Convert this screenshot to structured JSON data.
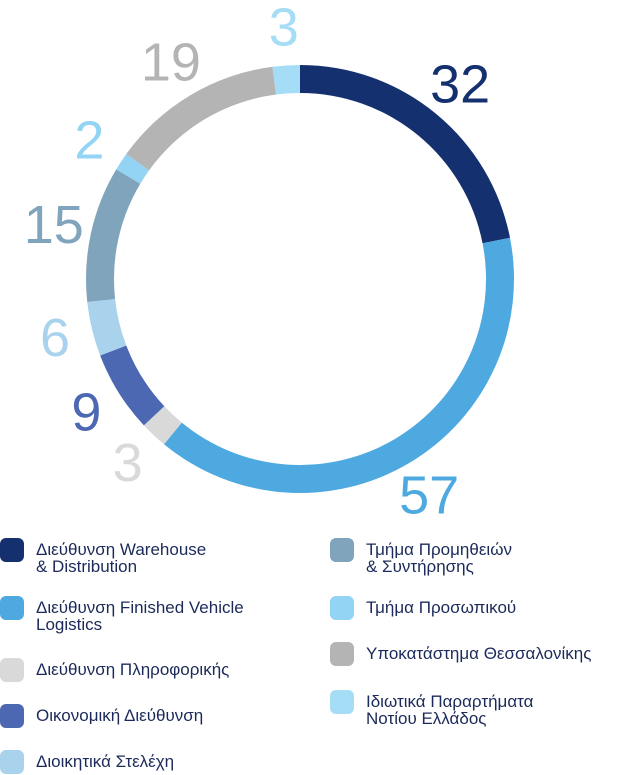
{
  "chart_data": {
    "type": "donut",
    "series": [
      {
        "name": "Διεύθυνση Warehouse\n& Distribution",
        "color": "#14306f",
        "value": 32
      },
      {
        "name": "Διεύθυνση Finished Vehicle\nLogistics",
        "color": "#4da9e0",
        "value": 57
      },
      {
        "name": "Διεύθυνση Πληροφορικής",
        "color": "#d9d9d9",
        "value": 3
      },
      {
        "name": "Οικονομική Διεύθυνση",
        "color": "#4d68b2",
        "value": 9
      },
      {
        "name": "Διοικητικά Στελέχη",
        "color": "#a9d2ec",
        "value": 6
      },
      {
        "name": "Τμήμα Προμηθειών\n& Συντήρησης",
        "color": "#7fa4bc",
        "value": 15
      },
      {
        "name": "Τμήμα Προσωπικού",
        "color": "#93d4f5",
        "value": 2
      },
      {
        "name": "Υποκατάστημα Θεσσαλονίκης",
        "color": "#b4b4b4",
        "value": 19
      },
      {
        "name": "Ιδιωτικά Παραρτήματα\nΝοτίου Ελλάδος",
        "color": "#a5dcf6",
        "value": 3
      }
    ]
  }
}
